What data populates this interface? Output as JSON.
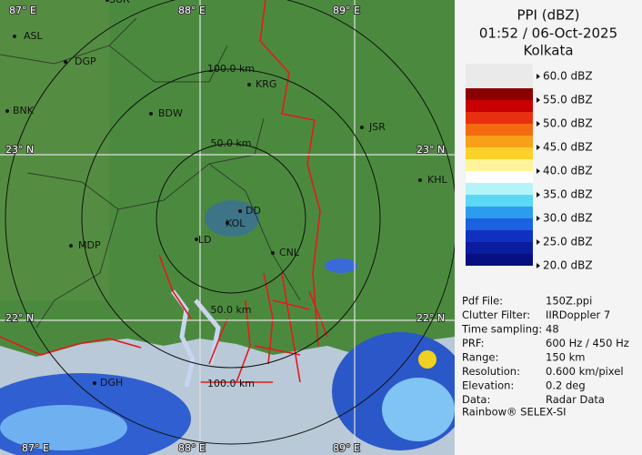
{
  "header": {
    "title": "PPI (dBZ)",
    "time": "01:52 / 06-Oct-2025",
    "site": "Kolkata"
  },
  "legend": {
    "levels": [
      "60.0 dBZ",
      "55.0 dBZ",
      "50.0 dBZ",
      "45.0 dBZ",
      "40.0 dBZ",
      "35.0 dBZ",
      "30.0 dBZ",
      "25.0 dBZ",
      "20.0 dBZ"
    ]
  },
  "info": {
    "rows": [
      [
        "Pdf File:",
        "150Z.ppi"
      ],
      [
        "Clutter Filter:",
        "IIRDoppler 7"
      ],
      [
        "Time sampling:",
        "48"
      ],
      [
        "PRF:",
        "600 Hz / 450 Hz"
      ],
      [
        "Range:",
        "150 km"
      ],
      [
        "Resolution:",
        "0.600 km/pixel"
      ],
      [
        "Elevation:",
        "0.2 deg"
      ],
      [
        "Data:",
        "Radar Data"
      ]
    ],
    "footer": "Rainbow® SELEX-SI"
  },
  "map": {
    "places": [
      "SUR",
      "ASL",
      "DGP",
      "BNK",
      "BDW",
      "KRG",
      "JSR",
      "KHL",
      "MDP",
      "DD",
      "KOL",
      "LD",
      "CNL",
      "DGH"
    ],
    "grid_labels": [
      "87° E",
      "88° E",
      "89° E",
      "23° N",
      "23° N",
      "22° N",
      "22° N",
      "87° E",
      "88° E",
      "89° E"
    ],
    "range_labels": [
      "100.0 km",
      "50.0 km",
      "50.0 km",
      "100.0 km"
    ]
  }
}
